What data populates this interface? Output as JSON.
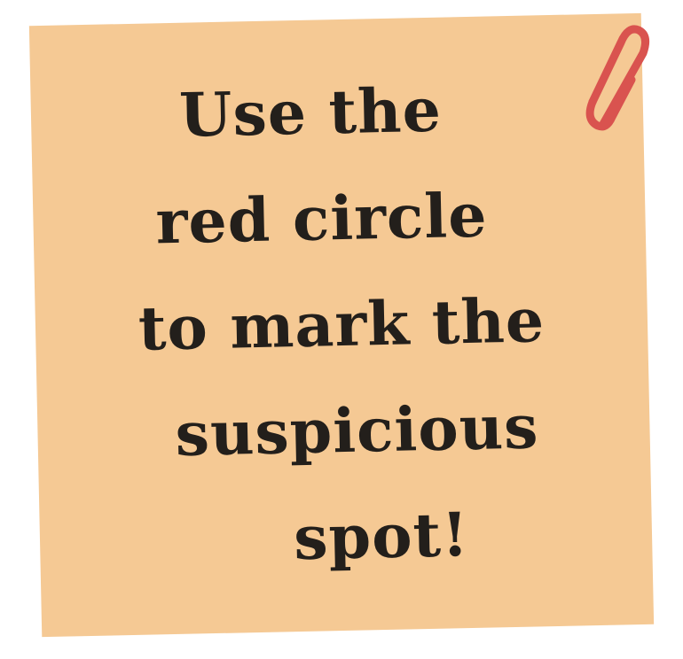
{
  "note": {
    "lines": [
      "Use the",
      "red circle",
      "to mark the",
      "suspicious",
      "spot!"
    ]
  },
  "colors": {
    "note_paper": "#f5c994",
    "text": "#231f1b",
    "paperclip": "#d9534f"
  },
  "icons": {
    "paperclip": "paperclip-icon"
  }
}
